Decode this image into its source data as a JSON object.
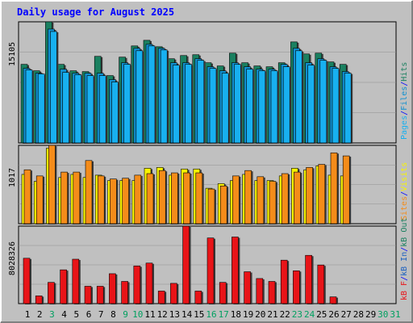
{
  "chart_data": [
    {
      "type": "bar",
      "title": "Daily usage for August 2025",
      "categories": [
        "1",
        "2",
        "3",
        "4",
        "5",
        "6",
        "7",
        "8",
        "9",
        "10",
        "11",
        "12",
        "13",
        "14",
        "15",
        "16",
        "17",
        "18",
        "19",
        "20",
        "21",
        "22",
        "23",
        "24",
        "25",
        "26",
        "27",
        "28",
        "29",
        "30",
        "31"
      ],
      "weekend_days": [
        "3",
        "9",
        "10",
        "16",
        "17",
        "23",
        "24",
        "30",
        "31"
      ],
      "panels": [
        {
          "name": "hits-files-pages",
          "max_label": "15105",
          "legend": [
            "Pages",
            "/",
            "Files",
            "/",
            "Hits"
          ],
          "ylim": [
            0,
            15105
          ],
          "series": [
            {
              "name": "Hits",
              "color": "#1a8060",
              "values": [
                9800,
                9000,
                15105,
                9800,
                9000,
                8900,
                10800,
                8400,
                10700,
                12100,
                12800,
                12000,
                10500,
                10900,
                11000,
                10000,
                9600,
                11200,
                10000,
                9600,
                9500,
                10000,
                12600,
                11100,
                11200,
                10100,
                9800,
                0,
                0,
                0,
                0
              ]
            },
            {
              "name": "Files",
              "color": "#1090d0",
              "values": [
                9300,
                8700,
                14200,
                9200,
                8700,
                8700,
                8700,
                7900,
                10000,
                11800,
                12300,
                11800,
                10000,
                10000,
                10500,
                9500,
                9000,
                10000,
                9500,
                9200,
                9200,
                9800,
                11800,
                10000,
                10500,
                9500,
                8900,
                0,
                0,
                0,
                0
              ]
            },
            {
              "name": "Pages",
              "color": "#18b0f0",
              "values": [
                9100,
                8600,
                13900,
                8800,
                8500,
                8400,
                8400,
                7600,
                9800,
                11500,
                12100,
                11600,
                9700,
                9800,
                10300,
                9300,
                8700,
                9800,
                9200,
                9000,
                9000,
                9500,
                11500,
                9700,
                10300,
                9300,
                8700,
                0,
                0,
                0,
                0
              ]
            }
          ]
        },
        {
          "name": "visits-sites",
          "max_label": "1017",
          "legend": [
            "Sites",
            "/",
            "Visits"
          ],
          "ylim": [
            0,
            1017
          ],
          "series": [
            {
              "name": "Visits",
              "color": "#f8f400",
              "values": [
                640,
                550,
                980,
                600,
                640,
                600,
                630,
                560,
                560,
                560,
                720,
                730,
                630,
                710,
                710,
                460,
                520,
                560,
                640,
                560,
                560,
                620,
                720,
                700,
                750,
                630,
                620,
                0,
                0,
                0,
                0
              ]
            },
            {
              "name": "Sites",
              "color": "#f48c1a",
              "values": [
                700,
                620,
                1017,
                670,
                670,
                820,
                620,
                580,
                590,
                630,
                650,
                690,
                660,
                660,
                660,
                450,
                490,
                620,
                690,
                610,
                550,
                650,
                670,
                730,
                770,
                920,
                880,
                0,
                0,
                0,
                0
              ]
            }
          ]
        },
        {
          "name": "kbytes",
          "max_label": "8028326",
          "legend": [
            "kB F",
            "/",
            "kB In",
            "/",
            "kB Out"
          ],
          "ylim": [
            0,
            8028326
          ],
          "series": [
            {
              "name": "kB F",
              "color": "#e81418",
              "values": [
                4700000,
                800000,
                2200000,
                3500000,
                4600000,
                1800000,
                1800000,
                3100000,
                2300000,
                3900000,
                4200000,
                1300000,
                2100000,
                8028326,
                1300000,
                6800000,
                2200000,
                6900000,
                3300000,
                2600000,
                2300000,
                4500000,
                3400000,
                5000000,
                4000000,
                700000,
                0,
                0,
                0,
                0,
                0
              ]
            }
          ]
        }
      ]
    }
  ],
  "colors": {
    "background": "#c0c0c0",
    "plot_background": "#c0c0c0",
    "title": "#0000ff",
    "weekday_label": "#000000",
    "weekend_label": "#00a060",
    "legend_slash": "#0000ff"
  }
}
